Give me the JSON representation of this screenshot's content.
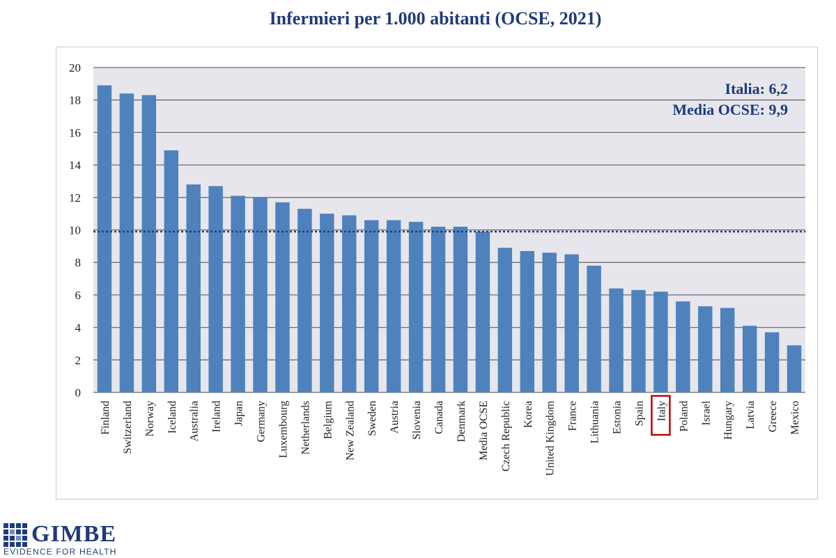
{
  "page": {
    "title": "Infermieri per 1.000 abitanti (OCSE, 2021)"
  },
  "colors": {
    "bar": "#4f81bd",
    "plot_bg": "#e6e6ec",
    "title": "#1f3b7a",
    "annotation": "#1f3b7a",
    "highlight_box": "#c00000",
    "reference_line": "#1f3b7a"
  },
  "chart_data": {
    "type": "bar",
    "title": "Infermieri per 1.000 abitanti (OCSE, 2021)",
    "xlabel": "",
    "ylabel": "",
    "ylim": [
      0,
      20
    ],
    "yticks": [
      0,
      2,
      4,
      6,
      8,
      10,
      12,
      14,
      16,
      18,
      20
    ],
    "grid": true,
    "categories": [
      "Finland",
      "Switzerland",
      "Norway",
      "Iceland",
      "Australia",
      "Ireland",
      "Japan",
      "Germany",
      "Luxembourg",
      "Netherlands",
      "Belgium",
      "New Zealand",
      "Sweden",
      "Austria",
      "Slovenia",
      "Canada",
      "Denmark",
      "Media OCSE",
      "Czech Republic",
      "Korea",
      "United Kingdom",
      "France",
      "Lithuania",
      "Estonia",
      "Spain",
      "Italy",
      "Poland",
      "Israel",
      "Hungary",
      "Latvia",
      "Greece",
      "Mexico"
    ],
    "values": [
      18.9,
      18.4,
      18.3,
      14.9,
      12.8,
      12.7,
      12.1,
      12.0,
      11.7,
      11.3,
      11.0,
      10.9,
      10.6,
      10.6,
      10.5,
      10.2,
      10.2,
      9.9,
      8.9,
      8.7,
      8.6,
      8.5,
      7.8,
      6.4,
      6.3,
      6.2,
      5.6,
      5.3,
      5.2,
      4.1,
      3.7,
      2.9
    ],
    "reference_line": {
      "label": "Media OCSE",
      "value": 9.9
    },
    "highlight": "Italy",
    "annotations": [
      "Italia: 6,2",
      "Media OCSE: 9,9"
    ]
  },
  "footer": {
    "brand": "GIMBE",
    "tagline": "EVIDENCE FOR HEALTH"
  }
}
